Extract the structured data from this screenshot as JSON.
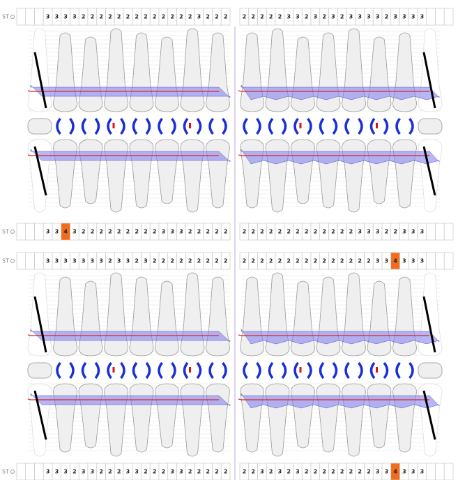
{
  "alert_from": 4,
  "alert_color": "#f26c1c",
  "charts": [
    {
      "top": {
        "label": "ST",
        "label_right": "ST",
        "left": [
          null,
          null,
          null,
          3,
          3,
          3,
          3,
          2,
          2,
          2,
          2,
          2,
          2,
          2,
          2,
          2,
          2,
          2,
          2,
          2,
          3,
          2,
          2,
          2
        ],
        "right": [
          2,
          2,
          2,
          2,
          2,
          3,
          3,
          2,
          3,
          2,
          3,
          2,
          3,
          3,
          3,
          3,
          2,
          3,
          3,
          3,
          3,
          null,
          null,
          null
        ]
      },
      "bottom": {
        "label": "ST",
        "left": [
          null,
          null,
          null,
          3,
          3,
          4,
          3,
          2,
          2,
          2,
          2,
          2,
          2,
          2,
          2,
          2,
          3,
          3,
          3,
          2,
          2,
          2,
          2,
          2
        ],
        "right": [
          2,
          2,
          2,
          2,
          2,
          2,
          2,
          2,
          2,
          2,
          2,
          2,
          2,
          3,
          3,
          3,
          2,
          2,
          3,
          3,
          3,
          null,
          null,
          null
        ]
      }
    },
    {
      "top": {
        "label": "ST",
        "label_right": "ST",
        "left": [
          null,
          null,
          null,
          3,
          3,
          3,
          3,
          3,
          3,
          3,
          2,
          3,
          3,
          2,
          3,
          2,
          2,
          2,
          2,
          2,
          2,
          2,
          2,
          2
        ],
        "right": [
          2,
          2,
          2,
          2,
          2,
          2,
          2,
          2,
          2,
          2,
          2,
          2,
          2,
          2,
          2,
          3,
          3,
          4,
          3,
          3,
          3,
          null,
          null,
          null
        ]
      },
      "bottom": {
        "label": "ST",
        "left": [
          null,
          null,
          null,
          3,
          3,
          3,
          2,
          3,
          3,
          2,
          2,
          2,
          3,
          3,
          2,
          2,
          2,
          3,
          3,
          2,
          2,
          2,
          2,
          2
        ],
        "right": [
          2,
          2,
          3,
          2,
          3,
          2,
          3,
          2,
          2,
          2,
          2,
          2,
          2,
          2,
          2,
          3,
          3,
          4,
          3,
          3,
          3,
          null,
          null,
          null
        ]
      }
    }
  ]
}
